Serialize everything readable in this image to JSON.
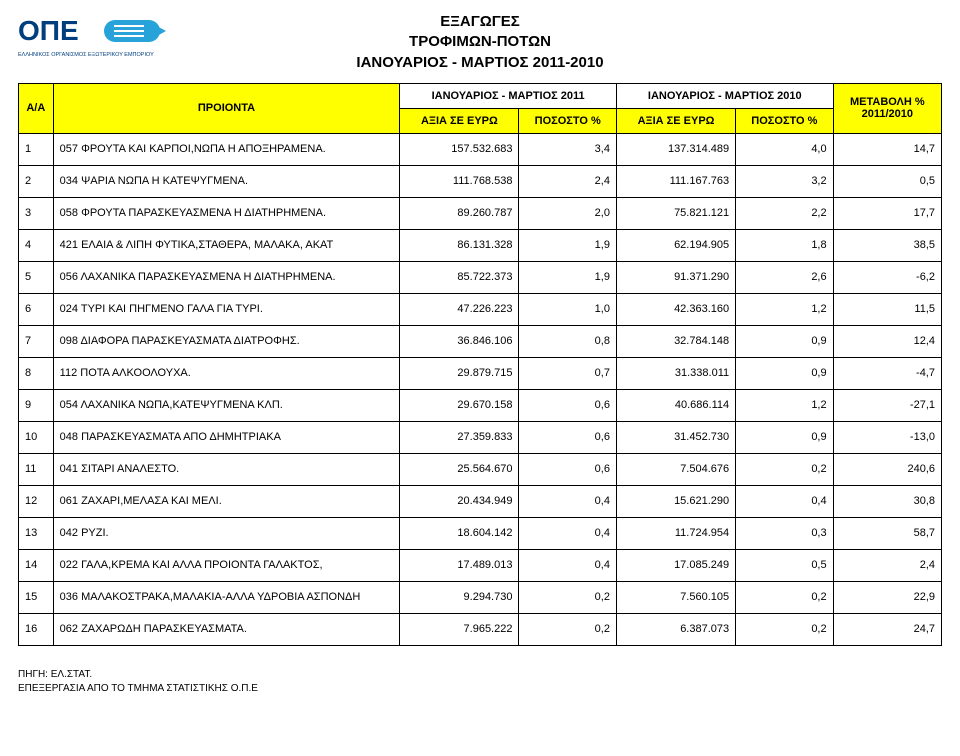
{
  "logo": {
    "main": "ΟΠΕ",
    "sub": "ΕΛΛΗΝΙΚΟΣ ΟΡΓΑΝΙΣΜΟΣ ΕΞΩΤΕΡΙΚΟΥ ΕΜΠΟΡΙΟΥ",
    "colors": {
      "text": "#003e7e",
      "arrow": "#27a3d9"
    }
  },
  "title": {
    "line1": "ΕΞΑΓΩΓΕΣ",
    "line2": "ΤΡΟΦΙΜΩΝ-ΠΟΤΩΝ",
    "line3": "ΙΑΝΟΥΑΡΙΟΣ - ΜΑΡΤΙΟΣ 2011-2010"
  },
  "headers": {
    "aa": "Α/Α",
    "products": "ΠΡΟΙΟΝΤΑ",
    "period2011": "ΙΑΝΟΥΑΡΙΟΣ - ΜΑΡΤΙΟΣ 2011",
    "period2010": "ΙΑΝΟΥΑΡΙΟΣ - ΜΑΡΤΙΟΣ 2010",
    "value_eur": "ΑΞΙΑ ΣΕ ΕΥΡΩ",
    "percent": "ΠΟΣΟΣΤΟ %",
    "change": "ΜΕΤΑΒΟΛΗ % 2011/2010"
  },
  "rows": [
    {
      "n": "1",
      "p": "057 ΦΡΟΥΤΑ ΚΑΙ ΚΑΡΠΟΙ,ΝΩΠΑ Η ΑΠΟΞΗΡΑΜΕΝΑ.",
      "v11": "157.532.683",
      "p11": "3,4",
      "v10": "137.314.489",
      "p10": "4,0",
      "chg": "14,7"
    },
    {
      "n": "2",
      "p": "034 ΨΑΡΙΑ ΝΩΠΑ Η ΚΑΤΕΨΥΓΜΕΝΑ.",
      "v11": "111.768.538",
      "p11": "2,4",
      "v10": "111.167.763",
      "p10": "3,2",
      "chg": "0,5"
    },
    {
      "n": "3",
      "p": "058 ΦΡΟΥΤΑ ΠΑΡΑΣΚΕΥΑΣΜΕΝΑ Η ΔΙΑΤΗΡΗΜΕΝΑ.",
      "v11": "89.260.787",
      "p11": "2,0",
      "v10": "75.821.121",
      "p10": "2,2",
      "chg": "17,7"
    },
    {
      "n": "4",
      "p": "421 ΕΛΑΙΑ & ΛΙΠΗ ΦΥΤΙΚΑ,ΣΤΑΘΕΡΑ, ΜΑΛΑΚΑ, ΑΚΑΤ",
      "v11": "86.131.328",
      "p11": "1,9",
      "v10": "62.194.905",
      "p10": "1,8",
      "chg": "38,5"
    },
    {
      "n": "5",
      "p": "056 ΛΑΧΑΝΙΚΑ ΠΑΡΑΣΚΕΥΑΣΜΕΝΑ Η ΔΙΑΤΗΡΗΜΕΝΑ.",
      "v11": "85.722.373",
      "p11": "1,9",
      "v10": "91.371.290",
      "p10": "2,6",
      "chg": "-6,2"
    },
    {
      "n": "6",
      "p": "024 ΤΥΡΙ ΚΑΙ ΠΗΓΜΕΝΟ ΓΑΛΑ ΓΙΑ ΤΥΡΙ.",
      "v11": "47.226.223",
      "p11": "1,0",
      "v10": "42.363.160",
      "p10": "1,2",
      "chg": "11,5"
    },
    {
      "n": "7",
      "p": "098 ΔΙΑΦΟΡΑ ΠΑΡΑΣΚΕΥΑΣΜΑΤΑ ΔΙΑΤΡΟΦΗΣ.",
      "v11": "36.846.106",
      "p11": "0,8",
      "v10": "32.784.148",
      "p10": "0,9",
      "chg": "12,4"
    },
    {
      "n": "8",
      "p": "112 ΠΟΤΑ ΑΛΚΟΟΛΟΥΧΑ.",
      "v11": "29.879.715",
      "p11": "0,7",
      "v10": "31.338.011",
      "p10": "0,9",
      "chg": "-4,7"
    },
    {
      "n": "9",
      "p": "054 ΛΑΧΑΝΙΚΑ ΝΩΠΑ,ΚΑΤΕΨΥΓΜΕΝΑ ΚΛΠ.",
      "v11": "29.670.158",
      "p11": "0,6",
      "v10": "40.686.114",
      "p10": "1,2",
      "chg": "-27,1"
    },
    {
      "n": "10",
      "p": "048 ΠΑΡΑΣΚΕΥΑΣΜΑΤΑ ΑΠΟ ΔΗΜΗΤΡΙΑΚΑ",
      "v11": "27.359.833",
      "p11": "0,6",
      "v10": "31.452.730",
      "p10": "0,9",
      "chg": "-13,0"
    },
    {
      "n": "11",
      "p": "041 ΣΙΤΑΡΙ ΑΝΑΛΕΣΤΟ.",
      "v11": "25.564.670",
      "p11": "0,6",
      "v10": "7.504.676",
      "p10": "0,2",
      "chg": "240,6"
    },
    {
      "n": "12",
      "p": "061 ΖΑΧΑΡΙ,ΜΕΛΑΣΑ ΚΑΙ ΜΕΛΙ.",
      "v11": "20.434.949",
      "p11": "0,4",
      "v10": "15.621.290",
      "p10": "0,4",
      "chg": "30,8"
    },
    {
      "n": "13",
      "p": "042 ΡΥΖΙ.",
      "v11": "18.604.142",
      "p11": "0,4",
      "v10": "11.724.954",
      "p10": "0,3",
      "chg": "58,7"
    },
    {
      "n": "14",
      "p": "022 ΓΑΛΑ,ΚΡΕΜΑ ΚΑΙ ΑΛΛΑ ΠΡΟΙΟΝΤΑ ΓΑΛΑΚΤΟΣ,",
      "v11": "17.489.013",
      "p11": "0,4",
      "v10": "17.085.249",
      "p10": "0,5",
      "chg": "2,4"
    },
    {
      "n": "15",
      "p": "036 ΜΑΛΑΚΟΣΤΡΑΚΑ,ΜΑΛΑΚΙΑ-ΑΛΛΑ ΥΔΡΟΒΙΑ ΑΣΠΟΝΔΗ",
      "v11": "9.294.730",
      "p11": "0,2",
      "v10": "7.560.105",
      "p10": "0,2",
      "chg": "22,9"
    },
    {
      "n": "16",
      "p": "062 ΖΑΧΑΡΩΔΗ ΠΑΡΑΣΚΕΥΑΣΜΑΤΑ.",
      "v11": "7.965.222",
      "p11": "0,2",
      "v10": "6.387.073",
      "p10": "0,2",
      "chg": "24,7"
    }
  ],
  "footer": {
    "line1": "ΠΗΓΗ: ΕΛ.ΣΤΑΤ.",
    "line2": "ΕΠΕΞΕΡΓΑΣΙΑ ΑΠΟ ΤΟ ΤΜΗΜΑ ΣΤΑΤΙΣΤΙΚΗΣ Ο.Π.Ε"
  },
  "colors": {
    "header_highlight": "#ffff00",
    "border": "#000000",
    "background": "#ffffff",
    "text": "#000000"
  }
}
